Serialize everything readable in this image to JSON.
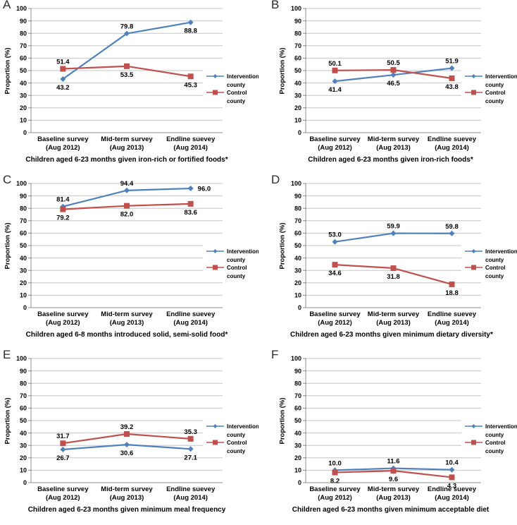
{
  "figure": {
    "ylabel": "Proportion (%)",
    "legend": {
      "position": "right",
      "entries": [
        {
          "series": "Intervention county",
          "label_lines": [
            "Intervention",
            "county"
          ]
        },
        {
          "series": "Control county",
          "label_lines": [
            "Control",
            "county"
          ]
        }
      ]
    },
    "colors": {
      "intervention": "#4F81BD",
      "control": "#C0504D",
      "gridline": "#c6c6c6",
      "axis": "#8c8c8c",
      "text": "#000000"
    }
  },
  "chart_data": [
    {
      "type": "line",
      "panel": "A",
      "title": "Children aged 6-23 months given iron-rich or fortified foods*",
      "xlabel": "",
      "ylabel": "Proportion (%)",
      "ylim": [
        0,
        100
      ],
      "ytick_step": 10,
      "grid": true,
      "legend_position": "right",
      "categories": [
        "Baseline survey\n(Aug 2012)",
        "Mid-term survey\n(Aug 2013)",
        "Endline suevey\n(Aug 2014)"
      ],
      "series": [
        {
          "name": "Intervention county",
          "color": "#4F81BD",
          "marker": "diamond",
          "values": [
            43.2,
            79.8,
            88.8
          ],
          "label_positions": [
            "below",
            "above",
            "below"
          ]
        },
        {
          "name": "Control county",
          "color": "#C0504D",
          "marker": "square",
          "values": [
            51.4,
            53.5,
            45.3
          ],
          "label_positions": [
            "above",
            "below",
            "below"
          ]
        }
      ]
    },
    {
      "type": "line",
      "panel": "B",
      "title": "Children aged 6-23 months given iron-rich foods*",
      "xlabel": "",
      "ylabel": "Proportion (%)",
      "ylim": [
        0,
        100
      ],
      "ytick_step": 10,
      "grid": true,
      "legend_position": "right",
      "categories": [
        "Baseline survey\n(Aug 2012)",
        "Mid-term survey\n(Aug 2013)",
        "Endline suevey\n(Aug 2014)"
      ],
      "series": [
        {
          "name": "Intervention county",
          "color": "#4F81BD",
          "marker": "diamond",
          "values": [
            41.4,
            46.5,
            51.9
          ],
          "label_positions": [
            "below",
            "below",
            "above"
          ]
        },
        {
          "name": "Control county",
          "color": "#C0504D",
          "marker": "square",
          "values": [
            50.1,
            50.5,
            43.8
          ],
          "label_positions": [
            "above",
            "above",
            "below"
          ]
        }
      ]
    },
    {
      "type": "line",
      "panel": "C",
      "title": "Children aged 6-8 months introduced solid, semi-solid food*",
      "xlabel": "",
      "ylabel": "Proportion (%)",
      "ylim": [
        0,
        100
      ],
      "ytick_step": 10,
      "grid": true,
      "legend_position": "right",
      "categories": [
        "Baseline survey\n(Aug 2012)",
        "Mid-term survey\n(Aug 2013)",
        "Endline suevey\n(Aug 2014)"
      ],
      "series": [
        {
          "name": "Intervention county",
          "color": "#4F81BD",
          "marker": "diamond",
          "values": [
            81.4,
            94.4,
            96.0
          ],
          "label_positions": [
            "above",
            "above",
            "right"
          ]
        },
        {
          "name": "Control county",
          "color": "#C0504D",
          "marker": "square",
          "values": [
            79.2,
            82.0,
            83.6
          ],
          "label_positions": [
            "below",
            "below",
            "below"
          ]
        }
      ]
    },
    {
      "type": "line",
      "panel": "D",
      "title": "Children aged 6-23 months given minimum dietary diversity*",
      "xlabel": "",
      "ylabel": "Proportion (%)",
      "ylim": [
        0,
        100
      ],
      "ytick_step": 10,
      "grid": true,
      "legend_position": "right",
      "categories": [
        "Baseline survey\n(Aug 2012)",
        "Mid-term survey\n(Aug 2013)",
        "Endline suevey\n(Aug 2014)"
      ],
      "series": [
        {
          "name": "Intervention county",
          "color": "#4F81BD",
          "marker": "diamond",
          "values": [
            53.0,
            59.9,
            59.8
          ],
          "label_positions": [
            "above",
            "above",
            "above"
          ]
        },
        {
          "name": "Control county",
          "color": "#C0504D",
          "marker": "square",
          "values": [
            34.6,
            31.8,
            18.8
          ],
          "label_positions": [
            "below",
            "below",
            "below"
          ]
        }
      ]
    },
    {
      "type": "line",
      "panel": "E",
      "title": "Children aged 6-23 months given minimum meal frequency",
      "xlabel": "",
      "ylabel": "Proportion (%)",
      "ylim": [
        0,
        100
      ],
      "ytick_step": 10,
      "grid": true,
      "legend_position": "right",
      "categories": [
        "Baseline survey\n(Aug 2012)",
        "Mid-term survey\n(Aug 2013)",
        "Endline suevey\n(Aug 2014)"
      ],
      "series": [
        {
          "name": "Intervention county",
          "color": "#4F81BD",
          "marker": "diamond",
          "values": [
            26.7,
            30.6,
            27.1
          ],
          "label_positions": [
            "below",
            "below",
            "below"
          ]
        },
        {
          "name": "Control county",
          "color": "#C0504D",
          "marker": "square",
          "values": [
            31.7,
            39.2,
            35.3
          ],
          "label_positions": [
            "above",
            "above",
            "above"
          ]
        }
      ]
    },
    {
      "type": "line",
      "panel": "F",
      "title": "Children aged 6-23 months given minimum acceptable diet",
      "xlabel": "",
      "ylabel": "Proportion (%)",
      "ylim": [
        0,
        100
      ],
      "ytick_step": 10,
      "grid": true,
      "legend_position": "right",
      "categories": [
        "Baseline survey\n(Aug 2012)",
        "Mid-term survey\n(Aug 2013)",
        "Endline suevey\n(Aug 2014)"
      ],
      "series": [
        {
          "name": "Intervention county",
          "color": "#4F81BD",
          "marker": "diamond",
          "values": [
            10.0,
            11.6,
            10.4
          ],
          "label_positions": [
            "above",
            "above",
            "above"
          ]
        },
        {
          "name": "Control county",
          "color": "#C0504D",
          "marker": "square",
          "values": [
            8.2,
            9.6,
            4.3
          ],
          "label_positions": [
            "below",
            "below",
            "below"
          ]
        }
      ]
    }
  ]
}
